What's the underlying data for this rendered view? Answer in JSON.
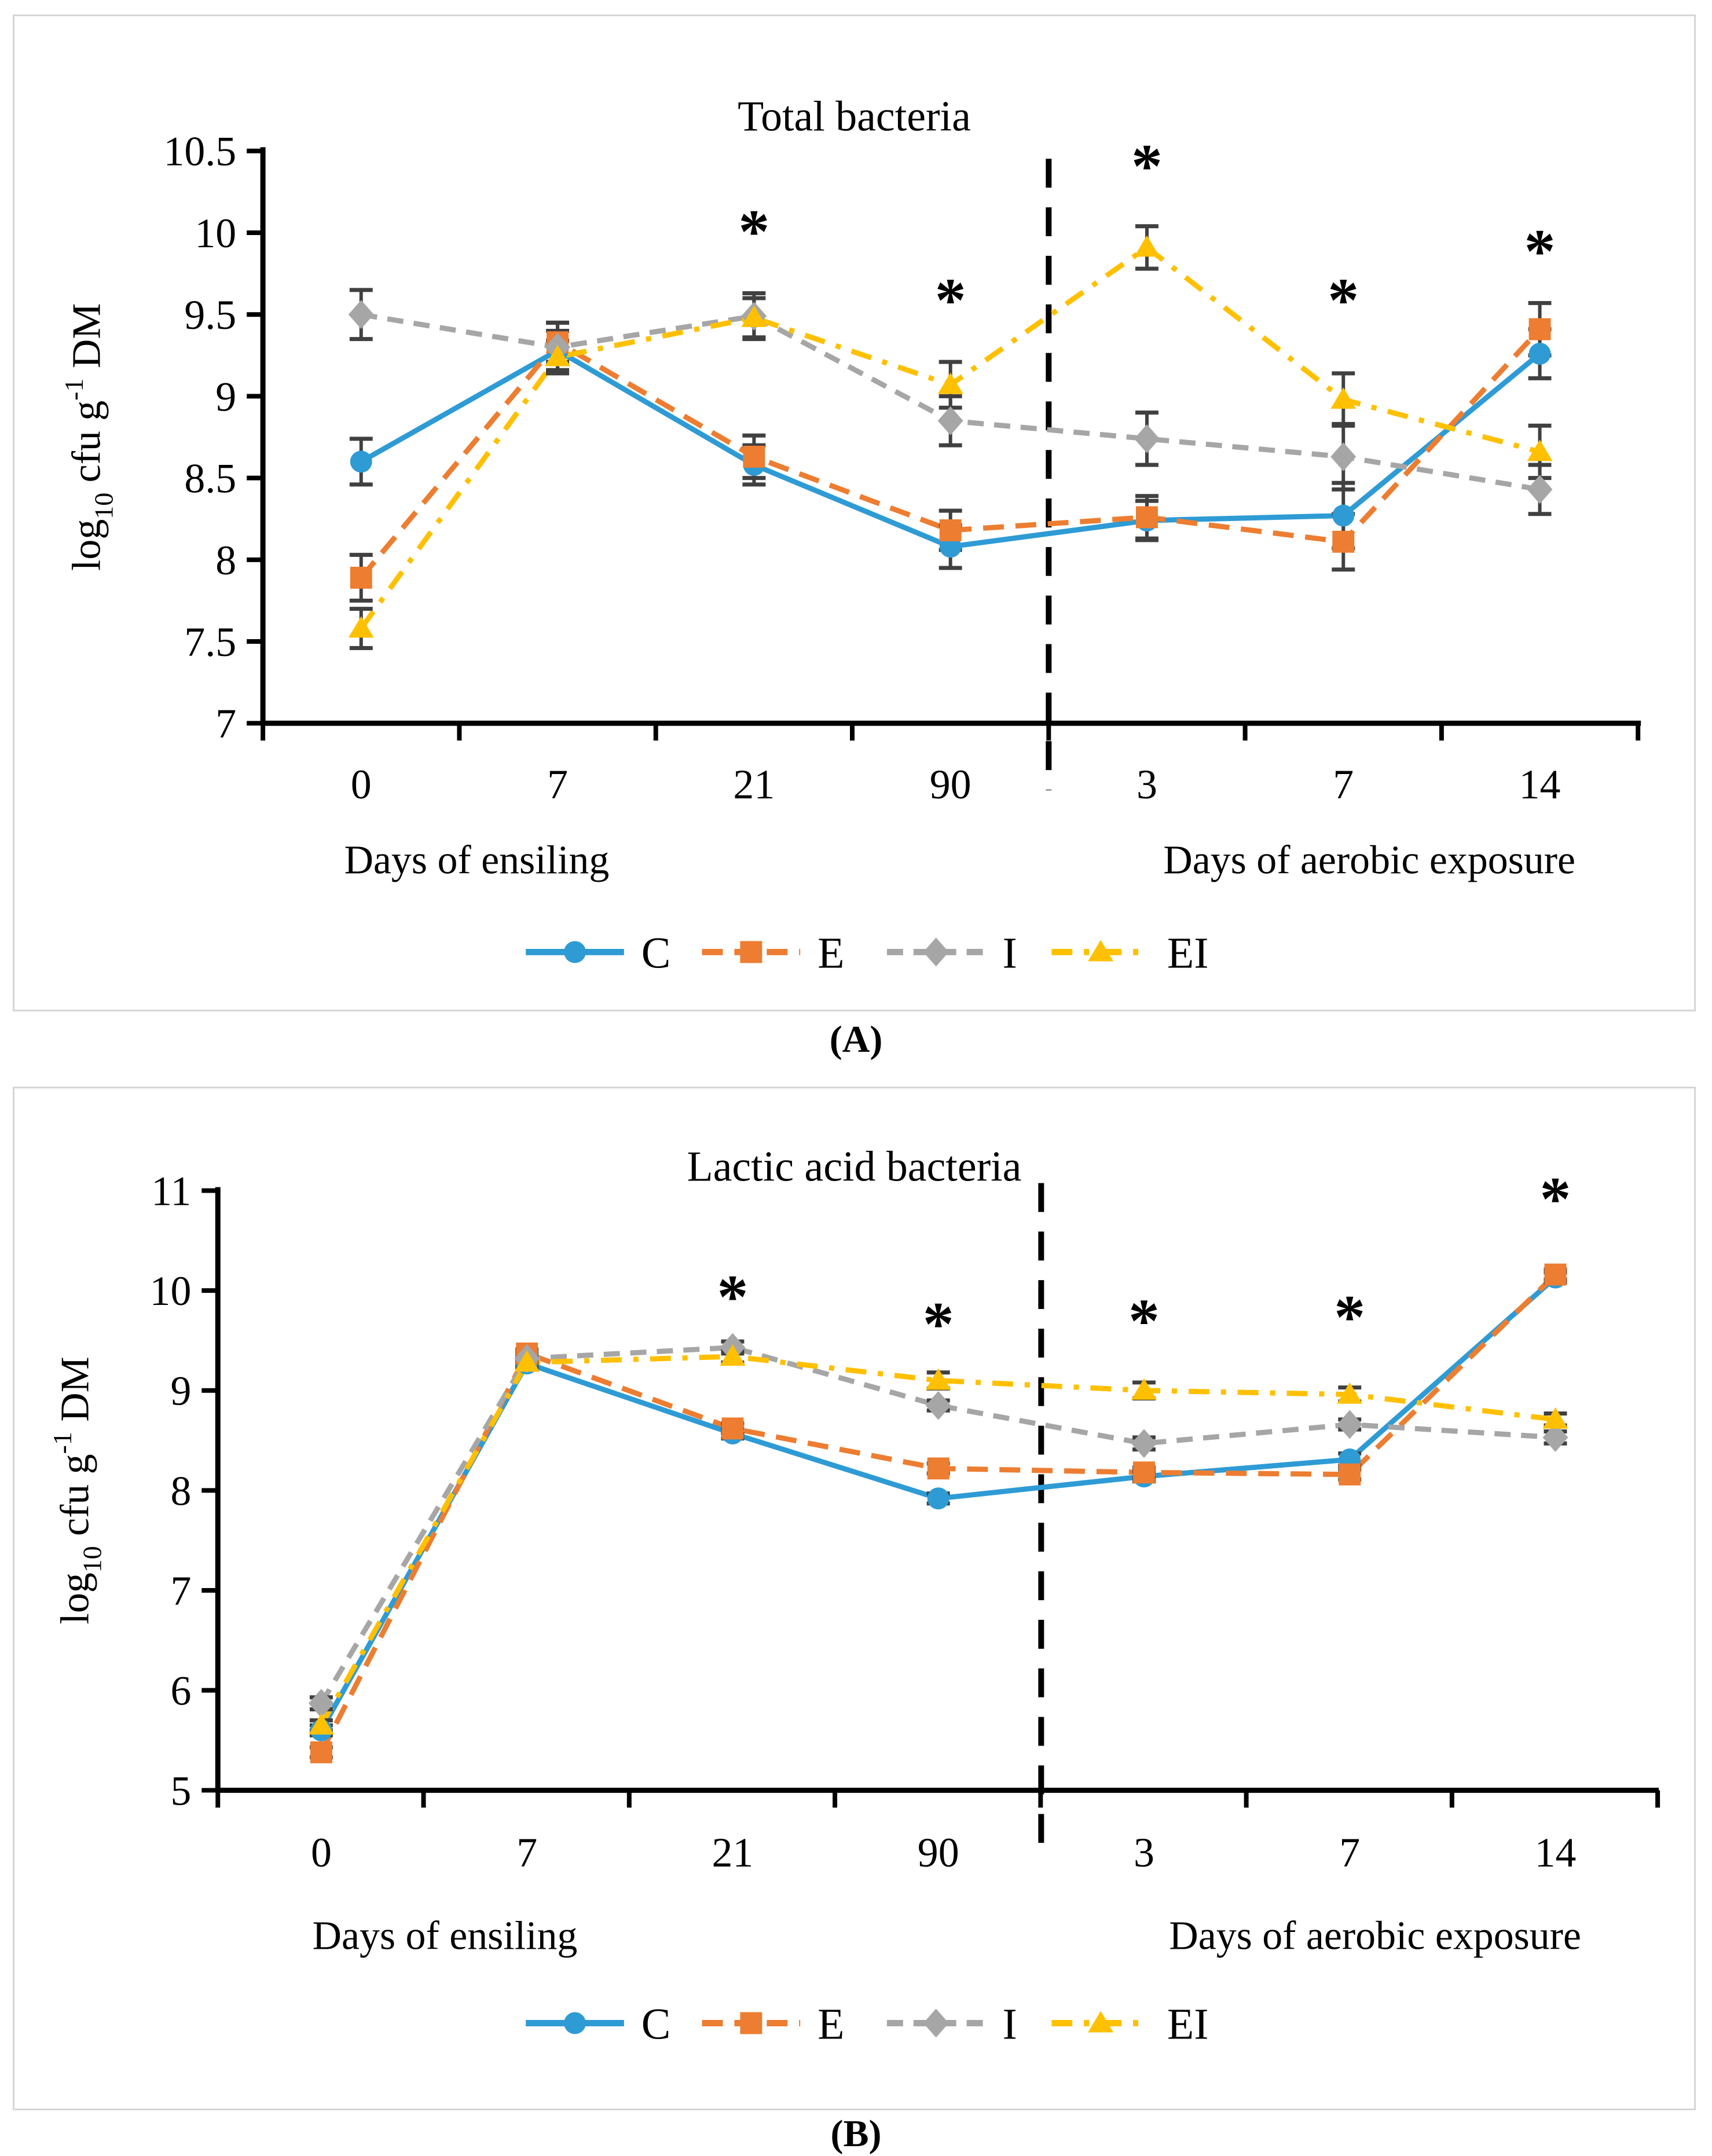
{
  "page": {
    "background": "#ffffff"
  },
  "captions": {
    "panel_a": "(A)",
    "panel_b": "(B)"
  },
  "colors": {
    "C": "#2E9BD5",
    "E": "#ED7D31",
    "I": "#A6A6A6",
    "EI": "#FFC000",
    "error_bar": "#404040",
    "axis": "#000000",
    "separator": "#000000",
    "panel_border": "#D6D6D6"
  },
  "chart_data": [
    {
      "type": "line",
      "title": "Total bacteria",
      "ylabel": "log10 cfu g-1 DM",
      "ylabel_parts": [
        {
          "t": "log"
        },
        {
          "t": "10",
          "script": "sub"
        },
        {
          "t": " cfu g"
        },
        {
          "t": "-1",
          "script": "sup"
        },
        {
          "t": " DM"
        }
      ],
      "ylim": [
        7,
        10.5
      ],
      "ytick_step": 0.5,
      "ytick_labels": [
        "7",
        "7.5",
        "8",
        "8.5",
        "9",
        "9.5",
        "10",
        "10.5"
      ],
      "categories": [
        "0",
        "7",
        "21",
        "90",
        "3",
        "7",
        "14"
      ],
      "x_group_labels": [
        "Days of ensiling",
        "Days of aerobic exposure"
      ],
      "separator_after_index": 3,
      "legend_position": "bottom",
      "grid": false,
      "series": [
        {
          "name": "C",
          "color": "#2E9BD5",
          "marker": "circle",
          "line_style": "solid",
          "values": [
            8.6,
            9.28,
            8.58,
            8.08,
            8.24,
            8.27,
            9.26
          ],
          "errors": [
            0.14,
            0.12,
            0.12,
            0.13,
            0.12,
            0.2,
            0.15
          ]
        },
        {
          "name": "E",
          "color": "#ED7D31",
          "marker": "square",
          "line_style": "dash",
          "values": [
            7.89,
            9.33,
            8.63,
            8.18,
            8.26,
            8.11,
            9.41
          ],
          "errors": [
            0.14,
            0.12,
            0.13,
            0.12,
            0.13,
            0.17,
            0.16
          ]
        },
        {
          "name": "I",
          "color": "#A6A6A6",
          "marker": "diamond",
          "line_style": "short-dash",
          "values": [
            9.5,
            9.3,
            9.49,
            8.85,
            8.74,
            8.63,
            8.43
          ],
          "errors": [
            0.15,
            0.15,
            0.14,
            0.15,
            0.16,
            0.2,
            0.15
          ]
        },
        {
          "name": "EI",
          "color": "#FFC000",
          "marker": "triangle",
          "line_style": "dash-dot",
          "values": [
            7.58,
            9.24,
            9.48,
            9.07,
            9.91,
            8.98,
            8.66
          ],
          "errors": [
            0.12,
            0.1,
            0.12,
            0.14,
            0.13,
            0.16,
            0.16
          ]
        }
      ],
      "asterisks": [
        {
          "category_index": 2,
          "y": 10.12
        },
        {
          "category_index": 3,
          "y": 9.7
        },
        {
          "category_index": 4,
          "y": 10.52
        },
        {
          "category_index": 5,
          "y": 9.7
        },
        {
          "category_index": 6,
          "y": 10.0
        }
      ]
    },
    {
      "type": "line",
      "title": "Lactic acid bacteria",
      "ylabel": "log10 cfu g-1 DM",
      "ylabel_parts": [
        {
          "t": "log"
        },
        {
          "t": "10",
          "script": "sub"
        },
        {
          "t": " cfu g"
        },
        {
          "t": "-1",
          "script": "sup"
        },
        {
          "t": " DM"
        }
      ],
      "ylim": [
        5,
        11
      ],
      "ytick_step": 1,
      "ytick_labels": [
        "5",
        "6",
        "7",
        "8",
        "9",
        "10",
        "11"
      ],
      "categories": [
        "0",
        "7",
        "21",
        "90",
        "3",
        "7",
        "14"
      ],
      "x_group_labels": [
        "Days of ensiling",
        "Days of aerobic exposure"
      ],
      "separator_after_index": 3,
      "legend_position": "bottom",
      "grid": false,
      "series": [
        {
          "name": "C",
          "color": "#2E9BD5",
          "marker": "circle",
          "line_style": "solid",
          "values": [
            5.6,
            9.27,
            8.57,
            7.92,
            8.14,
            8.31,
            10.13
          ],
          "errors": [
            0.05,
            0.04,
            0.05,
            0.05,
            0.05,
            0.06,
            0.05
          ]
        },
        {
          "name": "E",
          "color": "#ED7D31",
          "marker": "square",
          "line_style": "dash",
          "values": [
            5.38,
            9.37,
            8.62,
            8.22,
            8.18,
            8.16,
            10.16
          ],
          "errors": [
            0.05,
            0.04,
            0.05,
            0.05,
            0.05,
            0.05,
            0.05
          ]
        },
        {
          "name": "I",
          "color": "#A6A6A6",
          "marker": "diamond",
          "line_style": "short-dash",
          "values": [
            5.87,
            9.32,
            9.43,
            8.85,
            8.47,
            8.66,
            8.53
          ],
          "errors": [
            0.06,
            0.05,
            0.06,
            0.05,
            0.06,
            0.05,
            0.06
          ]
        },
        {
          "name": "EI",
          "color": "#FFC000",
          "marker": "triangle",
          "line_style": "dash-dot",
          "values": [
            5.65,
            9.28,
            9.34,
            9.1,
            9.0,
            8.96,
            8.71
          ],
          "errors": [
            0.05,
            0.04,
            0.06,
            0.08,
            0.08,
            0.07,
            0.06
          ]
        }
      ],
      "asterisks": [
        {
          "category_index": 2,
          "y": 10.12
        },
        {
          "category_index": 3,
          "y": 9.85
        },
        {
          "category_index": 4,
          "y": 9.88
        },
        {
          "category_index": 5,
          "y": 9.92
        },
        {
          "category_index": 6,
          "y": 11.1
        }
      ]
    }
  ]
}
